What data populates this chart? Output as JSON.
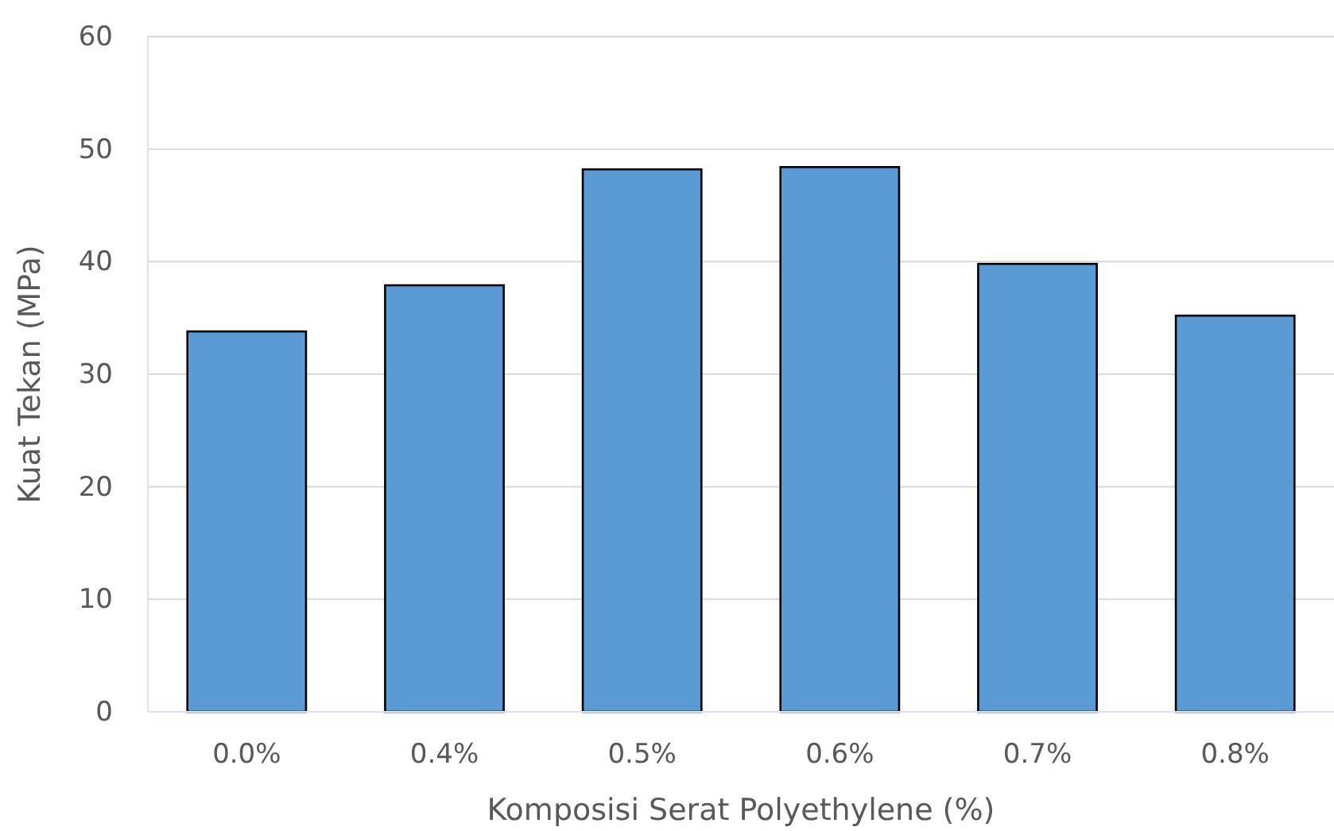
{
  "chart_data": {
    "type": "bar",
    "categories": [
      "0.0%",
      "0.4%",
      "0.5%",
      "0.6%",
      "0.7%",
      "0.8%"
    ],
    "values": [
      33.8,
      37.9,
      48.2,
      48.4,
      39.8,
      35.2
    ],
    "color": "#5b9bd5",
    "ylim": [
      0,
      60
    ],
    "yticks": [
      0,
      10,
      20,
      30,
      40,
      50,
      60
    ],
    "grid": "y",
    "xlabel": "Komposisi Serat Polyethylene (%)",
    "ylabel": "Kuat Tekan (MPa)"
  }
}
